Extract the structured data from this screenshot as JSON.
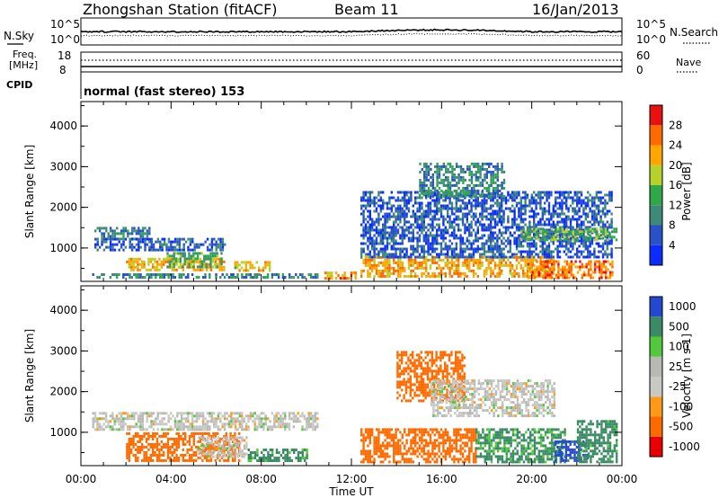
{
  "header": {
    "title": "Zhongshan Station (fitACF)",
    "beam": "Beam 11",
    "date": "16/Jan/2013"
  },
  "status_panels": {
    "nsky_label": "N.Sky",
    "nsearch_label": "N.Search",
    "freq_label_1": "Freq.",
    "freq_label_2": "[MHz]",
    "nave_label": "Nave",
    "cpid_label": "CPID",
    "cpid_text": "normal (fast stereo) 153",
    "noise_ticks_left": [
      "10^5",
      "10^0"
    ],
    "noise_ticks_right": [
      "10^5",
      "10^0"
    ],
    "freq_ticks_left": [
      "18",
      "8"
    ],
    "nave_ticks_right": [
      "60",
      "0"
    ]
  },
  "colors": {
    "power": [
      "#0a2cff",
      "#2a52c8",
      "#3e8a78",
      "#2fa84a",
      "#b4d22a",
      "#ffa500",
      "#ff6a00",
      "#e81010"
    ],
    "velocity": [
      "#e80000",
      "#ff6a00",
      "#ff9a18",
      "#c8c8c4",
      "#b8b8b4",
      "#52c83c",
      "#3a8a64",
      "#2448d0"
    ]
  },
  "xaxis": {
    "label": "Time UT",
    "ticks": [
      "00:00",
      "04:00",
      "08:00",
      "12:00",
      "16:00",
      "20:00",
      "00:00"
    ]
  },
  "chart_data": [
    {
      "type": "heatmap",
      "title": "Power",
      "quantity": "Power",
      "unit": "[dB]",
      "xlabel": "Time UT",
      "ylabel": "Slant Range [km]",
      "xlim": [
        "00:00",
        "24:00"
      ],
      "ylim": [
        180,
        4600
      ],
      "yticks": [
        "1000",
        "2000",
        "3000",
        "4000"
      ],
      "colorbar_ticks": [
        "4",
        "8",
        "12",
        "16",
        "20",
        "24",
        "28"
      ],
      "colorbar_range": [
        0,
        32
      ],
      "echo_regions": [
        {
          "t0": 0.6,
          "t1": 3.0,
          "r0": 1250,
          "r1": 1520,
          "level": 9
        },
        {
          "t0": 0.6,
          "t1": 6.4,
          "r0": 950,
          "r1": 1250,
          "level": 6
        },
        {
          "t0": 2.0,
          "t1": 6.4,
          "r0": 440,
          "r1": 760,
          "level": 22
        },
        {
          "t0": 3.8,
          "t1": 6.2,
          "r0": 560,
          "r1": 900,
          "level": 13
        },
        {
          "t0": 6.8,
          "t1": 8.4,
          "r0": 440,
          "r1": 680,
          "level": 20
        },
        {
          "t0": 0.5,
          "t1": 10.5,
          "r0": 260,
          "r1": 380,
          "level": 10
        },
        {
          "t0": 10.8,
          "t1": 12.2,
          "r0": 260,
          "r1": 420,
          "level": 24
        },
        {
          "t0": 12.4,
          "t1": 21.0,
          "r0": 300,
          "r1": 800,
          "level": 22
        },
        {
          "t0": 12.4,
          "t1": 23.5,
          "r0": 800,
          "r1": 2400,
          "level": 6
        },
        {
          "t0": 15.0,
          "t1": 18.8,
          "r0": 2300,
          "r1": 3100,
          "level": 10
        },
        {
          "t0": 19.5,
          "t1": 23.8,
          "r0": 1200,
          "r1": 1500,
          "level": 14
        },
        {
          "t0": 19.8,
          "t1": 23.6,
          "r0": 260,
          "r1": 700,
          "level": 25
        }
      ]
    },
    {
      "type": "heatmap",
      "title": "Velocity",
      "quantity": "Velocity",
      "unit": "[m s-1]",
      "xlabel": "Time UT",
      "ylabel": "Slant Range [km]",
      "xlim": [
        "00:00",
        "24:00"
      ],
      "ylim": [
        180,
        4600
      ],
      "yticks": [
        "1000",
        "2000",
        "3000",
        "4000"
      ],
      "colorbar_ticks": [
        "1000",
        "500",
        "100",
        "25",
        "-25",
        "-100",
        "-500",
        "-1000"
      ],
      "echo_regions": [
        {
          "t0": 0.5,
          "t1": 10.5,
          "r0": 1050,
          "r1": 1500,
          "vel": 0
        },
        {
          "t0": 2.0,
          "t1": 7.0,
          "r0": 300,
          "r1": 1000,
          "vel": -300
        },
        {
          "t0": 5.2,
          "t1": 7.4,
          "r0": 400,
          "r1": 900,
          "vel": 0
        },
        {
          "t0": 7.4,
          "t1": 10.0,
          "r0": 300,
          "r1": 600,
          "vel": 150
        },
        {
          "t0": 12.4,
          "t1": 17.5,
          "r0": 300,
          "r1": 1100,
          "vel": -300
        },
        {
          "t0": 14.0,
          "t1": 17.0,
          "r0": 1800,
          "r1": 3000,
          "vel": -250
        },
        {
          "t0": 15.5,
          "t1": 21.0,
          "r0": 1400,
          "r1": 2300,
          "vel": 0
        },
        {
          "t0": 17.5,
          "t1": 21.5,
          "r0": 300,
          "r1": 1100,
          "vel": 150
        },
        {
          "t0": 21.0,
          "t1": 22.5,
          "r0": 300,
          "r1": 800,
          "vel": 800
        },
        {
          "t0": 22.0,
          "t1": 23.8,
          "r0": 300,
          "r1": 1300,
          "vel": 200
        }
      ]
    }
  ]
}
